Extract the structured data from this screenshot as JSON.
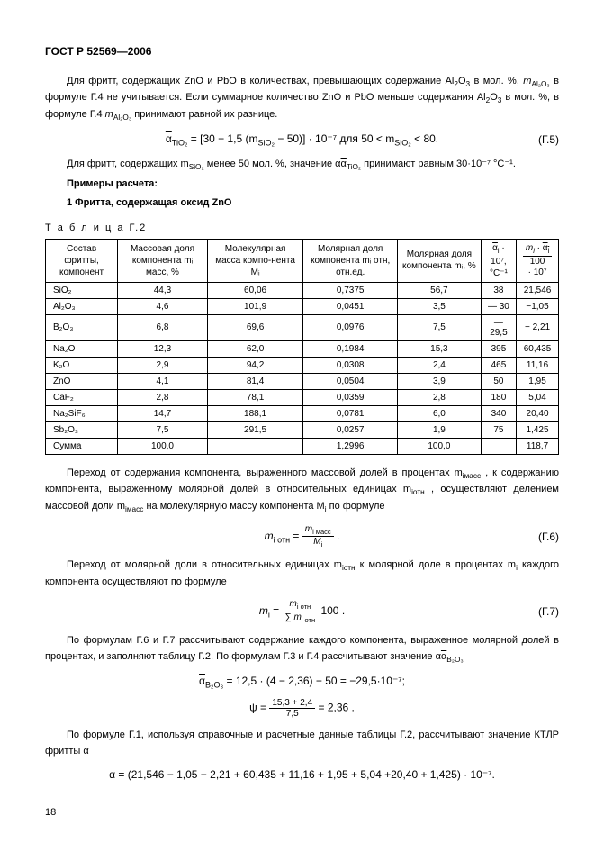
{
  "header": "ГОСТ Р 52569—2006",
  "p1a": "Для фритт, содержащих ZnO и PbO в количествах, превышающих содержание Al",
  "p1b": " в мол. %, ",
  "p1c": " в формуле Г.4 не учитывается. Если суммарное количество ZnO и PbO меньше содержания Al",
  "p1d": " в мол. %, в формуле Г.4 ",
  "p1e": " принимают равной их разнице.",
  "f5_pre": "α",
  "f5_formula": " = [30 − 1,5 (m",
  "f5_mid": " − 50)] · 10⁻⁷ для 50 < m",
  "f5_end": " < 80.",
  "f5_num": "(Г.5)",
  "p2a": "Для фритт, содержащих m",
  "p2b": " менее 50 мол. %, значение α",
  "p2c": " принимают равным 30·10⁻⁷ °С⁻¹.",
  "calc_title": "Примеры расчета:",
  "calc_sub": "1 Фритта, содержащая оксид ZnO",
  "table_label": "Т а б л и ц а   Г.2",
  "col1": "Состав фритты, компонент",
  "col2": "Массовая доля компонента mᵢ масс, %",
  "col3": "Молекулярная масса компо-нента Mᵢ",
  "col4": "Молярная доля компонента mᵢ отн, отн.ед.",
  "col5": "Молярная доля компонента mᵢ, %",
  "col6_a": "α",
  "col6_b": " · 10⁷, °C⁻¹",
  "col7a": "mᵢ · α",
  "col7b": " · 10⁷",
  "rows": [
    {
      "c1": "SiO₂",
      "c2": "44,3",
      "c3": "60,06",
      "c4": "0,7375",
      "c5": "56,7",
      "c6": "38",
      "c7": "21,546"
    },
    {
      "c1": "Al₂O₃",
      "c2": "4,6",
      "c3": "101,9",
      "c4": "0,0451",
      "c5": "3,5",
      "c6": "— 30",
      "c7": "−1,05"
    },
    {
      "c1": "B₂O₃",
      "c2": "6,8",
      "c3": "69,6",
      "c4": "0,0976",
      "c5": "7,5",
      "c6": "— 29,5",
      "c7": "− 2,21"
    },
    {
      "c1": "Na₂O",
      "c2": "12,3",
      "c3": "62,0",
      "c4": "0,1984",
      "c5": "15,3",
      "c6": "395",
      "c7": "60,435"
    },
    {
      "c1": "K₂O",
      "c2": "2,9",
      "c3": "94,2",
      "c4": "0,0308",
      "c5": "2,4",
      "c6": "465",
      "c7": "11,16"
    },
    {
      "c1": "ZnO",
      "c2": "4,1",
      "c3": "81,4",
      "c4": "0,0504",
      "c5": "3,9",
      "c6": "50",
      "c7": "1,95"
    },
    {
      "c1": "CaF₂",
      "c2": "2,8",
      "c3": "78,1",
      "c4": "0,0359",
      "c5": "2,8",
      "c6": "180",
      "c7": "5,04"
    },
    {
      "c1": "Na₂SiF₆",
      "c2": "14,7",
      "c3": "188,1",
      "c4": "0,0781",
      "c5": "6,0",
      "c6": "340",
      "c7": "20,40"
    },
    {
      "c1": "Sb₂O₃",
      "c2": "7,5",
      "c3": "291,5",
      "c4": "0,0257",
      "c5": "1,9",
      "c6": "75",
      "c7": "1,425"
    },
    {
      "c1": "Сумма",
      "c2": "100,0",
      "c3": "",
      "c4": "1,2996",
      "c5": "100,0",
      "c6": "",
      "c7": "118,7"
    }
  ],
  "p3a": "Переход от содержания компонента, выраженного массовой долей в процентах m",
  "p3b": ", к содержанию компонента, выраженному молярной долей в относительных единицах m",
  "p3c": ", осуществляют делением массовой доли m",
  "p3d": " на молекулярную массу компонента M",
  "p3e": " по формуле",
  "f6_num": "(Г.6)",
  "p4a": "Переход от молярной доли в относительных единицах m",
  "p4b": " к молярной доле в процентах m",
  "p4c": " каждого компонента осуществляют по формуле",
  "f7_num": "(Г.7)",
  "p5a": "По формулам Г.6 и Г.7 рассчитывают содержание каждого компонента, выраженное молярной долей в процентах, и заполняют таблицу Г.2. По формулам Г.3 и Г.4 рассчитывают значение α",
  "p5b": "",
  "eq1": " = 12,5 · (4 − 2,36) − 50 = −29,5·10⁻⁷;",
  "eq2_lhs": "ψ = ",
  "eq2_num": "15,3 + 2,4",
  "eq2_den": "7,5",
  "eq2_rhs": " = 2,36 .",
  "p6": "По формуле Г.1, используя справочные и расчетные данные таблицы Г.2, рассчитывают значение КТЛР фритты α",
  "eq3": "α = (21,546 − 1,05 − 2,21 + 60,435 + 11,16 + 1,95 + 5,04 +20,40 + 1,425) · 10⁻⁷.",
  "page_number": "18"
}
